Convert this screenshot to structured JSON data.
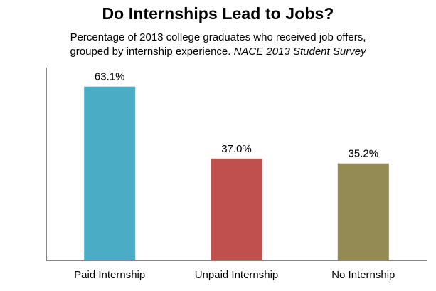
{
  "chart_data": {
    "type": "bar",
    "title": "Do Internships Lead to Jobs?",
    "subtitle_line1": "Percentage of 2013 college graduates who received job offers,",
    "subtitle_line2": "grouped by internship experience.",
    "source": "NACE 2013 Student Survey",
    "categories": [
      "Paid Internship",
      "Unpaid Internship",
      "No Internship"
    ],
    "values": [
      63.1,
      37.0,
      35.2
    ],
    "data_labels": [
      "63.1%",
      "37.0%",
      "35.2%"
    ],
    "colors": [
      "#4bacc6",
      "#c0504d",
      "#948a54"
    ],
    "ylim": [
      0,
      70
    ],
    "grid": false,
    "legend": "none"
  }
}
